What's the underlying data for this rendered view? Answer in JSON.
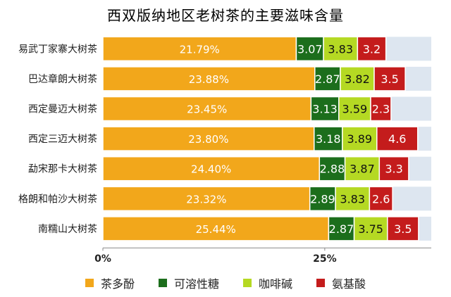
{
  "chart_data": {
    "type": "bar",
    "stacked": true,
    "orientation": "horizontal",
    "title": "西双版纳地区老树茶的主要滋味含量",
    "categories": [
      "易武丁家寨大树茶",
      "巴达章朗大树茶",
      "西定曼迈大树茶",
      "西定三迈大树茶",
      "勐宋那卡大树茶",
      "格朗和帕沙大树茶",
      "南糯山大树茶"
    ],
    "x_ticks": [
      "0%",
      "25%"
    ],
    "xlim": [
      0,
      37
    ],
    "grid": false,
    "legend_position": "bottom",
    "series": [
      {
        "name": "茶多酚",
        "color": "#f2a71b",
        "values": [
          21.79,
          23.88,
          23.45,
          23.8,
          24.4,
          23.32,
          25.44
        ],
        "labels": [
          "21.79%",
          "23.88%",
          "23.45%",
          "23.80%",
          "24.40%",
          "23.32%",
          "25.44%"
        ]
      },
      {
        "name": "可溶性糖",
        "color": "#1c6e1c",
        "values": [
          3.07,
          2.87,
          3.13,
          3.18,
          2.88,
          2.89,
          2.87
        ],
        "labels": [
          "3.07",
          "2.87",
          "3.13",
          "3.18",
          "2.88",
          "2.89",
          "2.87"
        ]
      },
      {
        "name": "咖啡碱",
        "color": "#b5d923",
        "values": [
          3.83,
          3.82,
          3.59,
          3.89,
          3.87,
          3.83,
          3.75
        ],
        "labels": [
          "3.83",
          "3.82",
          "3.59",
          "3.89",
          "3.87",
          "3.83",
          "3.75"
        ]
      },
      {
        "name": "氨基酸",
        "color": "#c41c1c",
        "values": [
          3.2,
          3.5,
          2.3,
          4.6,
          3.3,
          2.6,
          3.5
        ],
        "labels": [
          "3.2",
          "3.5",
          "2.3",
          "4.6",
          "3.3",
          "2.6",
          "3.5"
        ]
      }
    ],
    "row_background": "#dde6f0"
  }
}
